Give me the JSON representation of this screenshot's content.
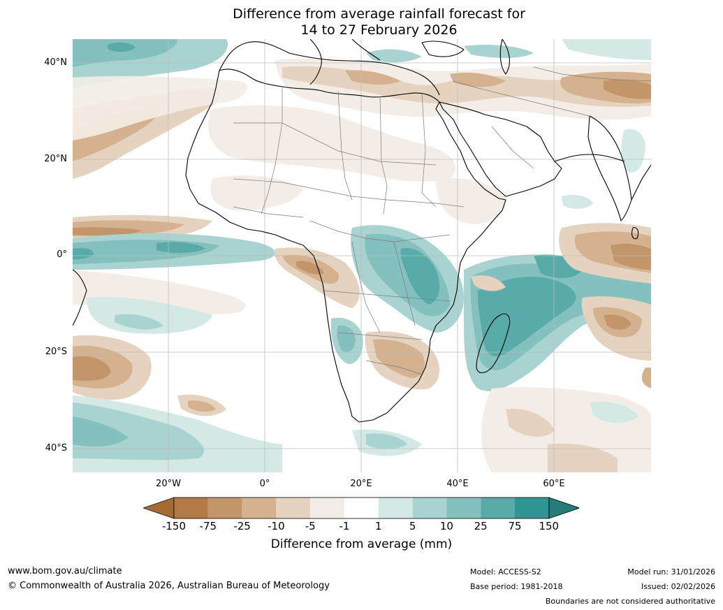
{
  "title": {
    "line1": "Difference from average rainfall forecast for",
    "line2": "14 to 27 February 2026"
  },
  "map": {
    "lat_labels": [
      "40°N",
      "20°N",
      "0°",
      "20°S",
      "40°S"
    ],
    "lon_labels": [
      "20°W",
      "0°",
      "20°E",
      "40°E",
      "60°E"
    ],
    "extent": {
      "lon_min": -40,
      "lon_max": 80,
      "lat_min": -45,
      "lat_max": 45
    }
  },
  "legend": {
    "ticks": [
      "-150",
      "-75",
      "-25",
      "-10",
      "-5",
      "-1",
      "1",
      "5",
      "10",
      "25",
      "75",
      "150"
    ],
    "label": "Difference from average (mm)",
    "colors": [
      "#a66b33",
      "#b27a44",
      "#c2956b",
      "#d4b28f",
      "#e5d2bf",
      "#f4ede7",
      "#ffffff",
      "#d4e8e6",
      "#a9d3d0",
      "#84c0bd",
      "#58aba9",
      "#2e9693",
      "#257c79"
    ]
  },
  "footer": {
    "url": "www.bom.gov.au/climate",
    "copyright": "© Commonwealth of Australia 2026, Australian Bureau of Meteorology",
    "model": "Model: ACCESS-S2",
    "base_period": "Base period: 1981-2018",
    "model_run": "Model run: 31/01/2026",
    "issued": "Issued: 02/02/2026",
    "disclaimer": "Boundaries are not considered authoritative"
  }
}
